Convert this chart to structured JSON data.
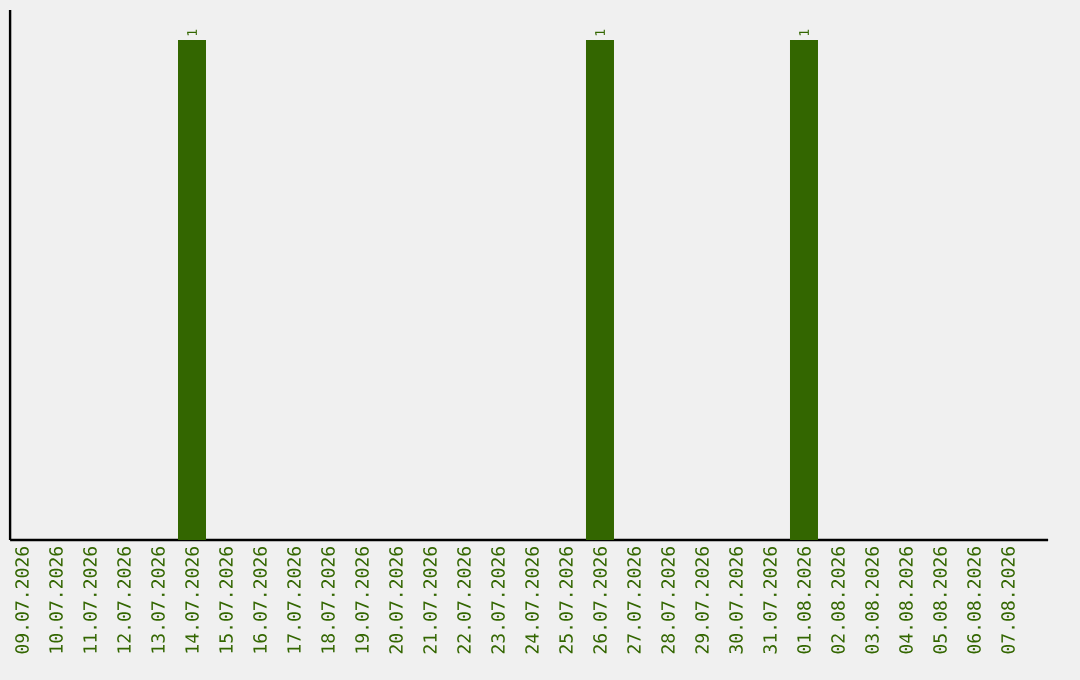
{
  "chart_data": {
    "type": "bar",
    "categories": [
      "09.07.2026",
      "10.07.2026",
      "11.07.2026",
      "12.07.2026",
      "13.07.2026",
      "14.07.2026",
      "15.07.2026",
      "16.07.2026",
      "17.07.2026",
      "18.07.2026",
      "19.07.2026",
      "20.07.2026",
      "21.07.2026",
      "22.07.2026",
      "23.07.2026",
      "24.07.2026",
      "25.07.2026",
      "26.07.2026",
      "27.07.2026",
      "28.07.2026",
      "29.07.2026",
      "30.07.2026",
      "31.07.2026",
      "01.08.2026",
      "02.08.2026",
      "03.08.2026",
      "04.08.2026",
      "05.08.2026",
      "06.08.2026",
      "07.08.2026"
    ],
    "values": [
      0,
      0,
      0,
      0,
      0,
      1,
      0,
      0,
      0,
      0,
      0,
      0,
      0,
      0,
      0,
      0,
      0,
      1,
      0,
      0,
      0,
      0,
      0,
      1,
      0,
      0,
      0,
      0,
      0,
      0
    ],
    "value_labels": [
      null,
      null,
      null,
      null,
      null,
      "1",
      null,
      null,
      null,
      null,
      null,
      null,
      null,
      null,
      null,
      null,
      null,
      "1",
      null,
      null,
      null,
      null,
      null,
      "1",
      null,
      null,
      null,
      null,
      null,
      null
    ],
    "color": "#336600"
  }
}
